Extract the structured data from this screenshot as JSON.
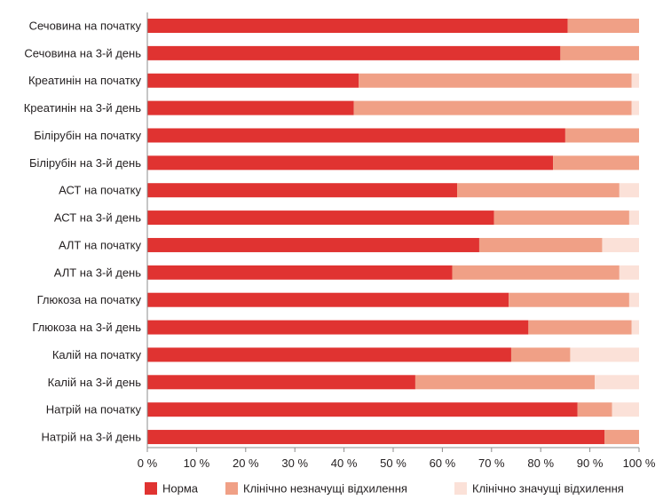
{
  "chart_data": {
    "type": "bar",
    "orientation": "horizontal",
    "stacked": true,
    "title": "",
    "xlabel": "",
    "ylabel": "",
    "xlim": [
      0,
      100
    ],
    "grid": false,
    "legend_placement": "bottom",
    "categories": [
      "Сечовина на початку",
      "Сечовина на 3-й день",
      "Креатинін на початку",
      "Креатинін на 3-й день",
      "Білірубін на початку",
      "Білірубін на 3-й день",
      "АСТ на початку",
      "АСТ на 3-й день",
      "АЛТ на початку",
      "АЛТ на 3-й день",
      "Глюкоза на початку",
      "Глюкоза на 3-й день",
      "Калій на початку",
      "Калій на 3-й день",
      "Натрій на початку",
      "Натрій на 3-й день"
    ],
    "series": [
      {
        "name": "Норма",
        "color": "#e03331",
        "values": [
          85.5,
          84,
          43,
          42,
          85,
          82.5,
          63,
          70.5,
          67.5,
          62,
          73.5,
          77.5,
          74,
          54.5,
          87.5,
          93
        ]
      },
      {
        "name": "Клінічно незначущі відхилення",
        "color": "#f0a086",
        "values": [
          14.5,
          16,
          55.5,
          56.5,
          15,
          17.5,
          33,
          27.5,
          25,
          34,
          24.5,
          21,
          12,
          36.5,
          7,
          7
        ]
      },
      {
        "name": "Клінічно значущі відхилення",
        "color": "#fbe1d8",
        "values": [
          0,
          0,
          1.5,
          1.5,
          0,
          0,
          4,
          2,
          7.5,
          4,
          2,
          1.5,
          14,
          9,
          5.5,
          0
        ]
      }
    ],
    "x_ticks": [
      "0 %",
      "10 %",
      "20 %",
      "30 %",
      "40 %",
      "50 %",
      "60 %",
      "70 %",
      "80 %",
      "90 %",
      "100 %"
    ]
  }
}
